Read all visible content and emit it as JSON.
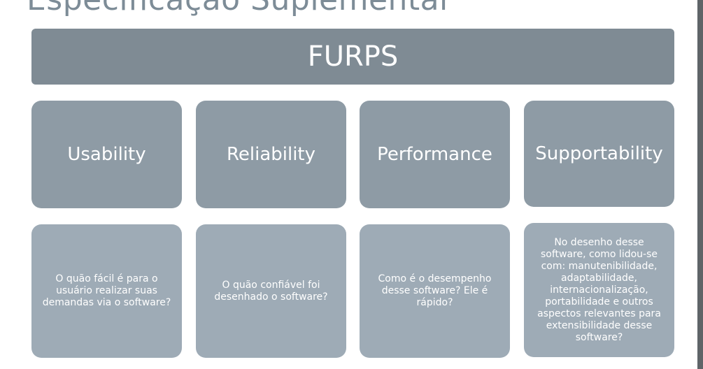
{
  "slide": {
    "title": "Especificação Suplementar"
  },
  "header": {
    "label": "FURPS"
  },
  "categories": [
    {
      "label": "Usability",
      "description": "O quão fácil é para o usuário realizar suas demandas via o software?"
    },
    {
      "label": "Reliability",
      "description": "O quão confiável foi desenhado o software?"
    },
    {
      "label": "Performance",
      "description": "Como é o desempenho desse software? Ele é rápido?"
    },
    {
      "label": "Supportability",
      "description": "No desenho desse software, como lidou-se com: manutenibilidade, adaptabilidade, internacionalização, portabilidade e outros aspectos relevantes para extensibilidade desse software?"
    }
  ],
  "colors": {
    "header_bg": "#7f8b94",
    "category_bg": "#8e9ba5",
    "description_bg": "#9eabb6",
    "title_text": "#7d8c97"
  }
}
